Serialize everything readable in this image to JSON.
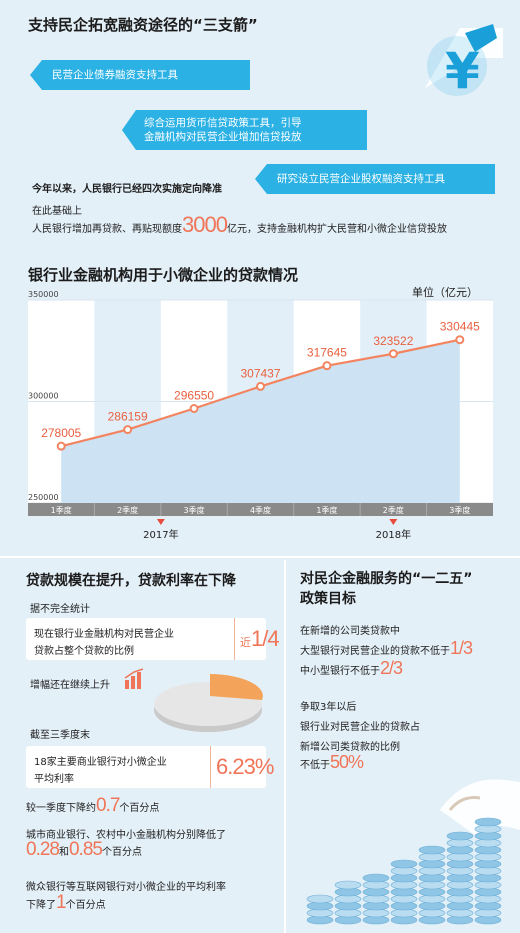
{
  "top": {
    "title": "支持民企拓宽融资途径的“三支箭”",
    "arrow1": "民营企业债券融资支持工具",
    "arrow2_line1": "综合运用货币信贷政策工具，引导",
    "arrow2_line2": "金融机构对民营企业增加信贷投放",
    "arrow3": "研究设立民营企业股权融资支持工具",
    "note1": "今年以来，人民银行已经四次实施定向降准",
    "note2": "在此基础上",
    "note3_pre": "人民银行增加再贷款、再贴现额度",
    "note3_num": "3000",
    "note3_post": "亿元，支持金融机构扩大民营和小微企业信贷投放"
  },
  "chart_data": {
    "type": "area",
    "title": "银行业金融机构用于小微企业的贷款情况",
    "unit": "单位（亿元）",
    "categories": [
      "1季度",
      "2季度",
      "3季度",
      "4季度",
      "1季度",
      "2季度",
      "3季度"
    ],
    "values": [
      278005,
      286159,
      296550,
      307437,
      317645,
      323522,
      330445
    ],
    "value_labels": [
      "278005",
      "286159",
      "296550",
      "307437",
      "317645",
      "323522",
      "330445"
    ],
    "yticks": [
      "350000",
      "300000",
      "250000"
    ],
    "ylim": [
      250000,
      350000
    ],
    "years": [
      "2017年",
      "2018年"
    ],
    "colors": {
      "line": "#f2845f",
      "fill": "#cfe4f4",
      "band": "#eaf3fa"
    }
  },
  "left": {
    "title": "贷款规模在提升，贷款利率在下降",
    "stat1": "据不完全统计",
    "box1_line1": "现在银行业金融机构对民营企业",
    "box1_line2": "贷款占整个贷款的比例",
    "box1_pre": "近",
    "box1_val": "1/4",
    "grow": "增幅还在继续上升",
    "stat2": "截至三季度末",
    "box2_line1": "18家主要商业银行对小微企业",
    "box2_line2": "平均利率",
    "box2_val": "6.23%",
    "drop1_pre": "较一季度下降约",
    "drop1_val": "0.7",
    "drop1_post": "个百分点",
    "drop2_line1": "城市商业银行、农村中小金融机构分别降低了",
    "drop2_val1": "0.28",
    "drop2_mid": "和",
    "drop2_val2": "0.85",
    "drop2_post": "个百分点",
    "drop3_line1": "微众银行等互联网银行对小微企业的平均利率",
    "drop3_pre": "下降了",
    "drop3_val": "1",
    "drop3_post": "个百分点"
  },
  "right": {
    "title1": "对民企金融服务的“一二五”",
    "title2": "政策目标",
    "p1_line1": "在新增的公司类贷款中",
    "p1_line2": "大型银行对民营企业的贷款不低于",
    "p1_val1": "1/3",
    "p1_line3": "中小型银行不低于",
    "p1_val2": "2/3",
    "p2_line1": "争取3年以后",
    "p2_line2": "银行业对民营企业的贷款占",
    "p2_line3": "新增公司类贷款的比例",
    "p2_pre": "不低于",
    "p2_val": "50%"
  }
}
